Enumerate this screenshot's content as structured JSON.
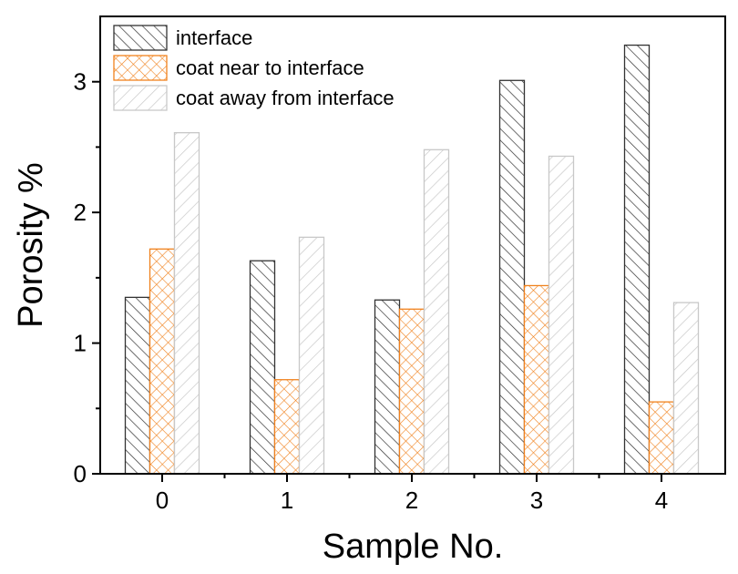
{
  "chart_data": {
    "type": "bar",
    "categories": [
      "0",
      "1",
      "2",
      "3",
      "4"
    ],
    "series": [
      {
        "name": "interface",
        "values": [
          1.35,
          1.63,
          1.33,
          3.01,
          3.28
        ],
        "color": "#333333",
        "pattern": "diag-right"
      },
      {
        "name": "coat near to interface",
        "values": [
          1.72,
          0.72,
          1.26,
          1.44,
          0.55
        ],
        "color": "#f0821e",
        "pattern": "crosshatch"
      },
      {
        "name": "coat away from interface",
        "values": [
          2.61,
          1.81,
          2.48,
          2.43,
          1.31
        ],
        "color": "#c8c8c8",
        "pattern": "diag-left"
      }
    ],
    "title": "",
    "xlabel": "Sample No.",
    "ylabel": "Porosity %",
    "ylim": [
      0,
      3.5
    ],
    "yticks": [
      "0",
      "1",
      "2",
      "3"
    ],
    "grid": false,
    "legend_position": "top-left"
  }
}
